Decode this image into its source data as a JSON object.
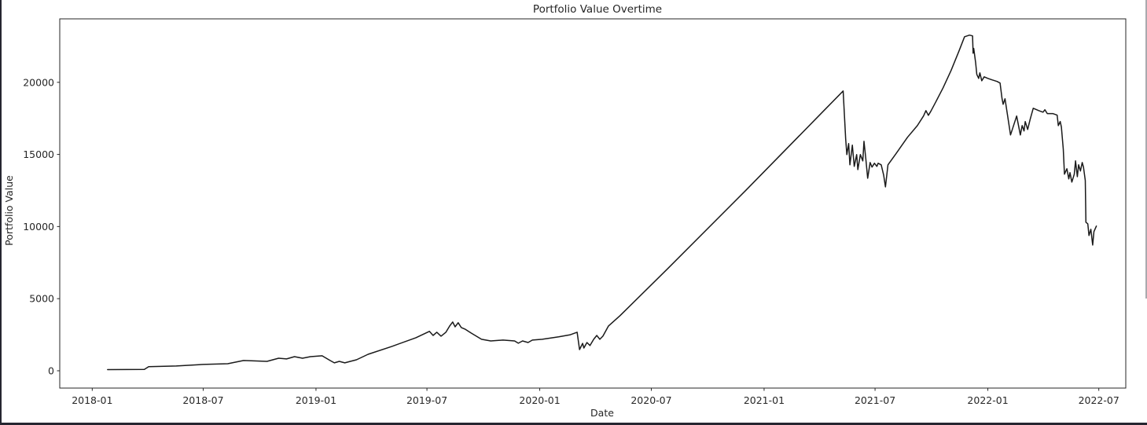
{
  "window": {
    "background": "#ffffff",
    "left_border_color": "#262630",
    "bottom_border_color": "#262630",
    "right_edge_color": "#aaaaae"
  },
  "chart_data": {
    "type": "line",
    "title": "Portfolio Value Overtime",
    "xlabel": "Date",
    "ylabel": "Portfolio Value",
    "grid": false,
    "legend_position": "none",
    "line_color": "#1a1a1a",
    "axis_color": "#262626",
    "x_tick_labels": [
      "2018-01",
      "2018-07",
      "2019-01",
      "2019-07",
      "2020-01",
      "2020-07",
      "2021-01",
      "2021-07",
      "2022-01",
      "2022-07"
    ],
    "y_tick_labels": [
      "0",
      "5000",
      "10000",
      "15000",
      "20000"
    ],
    "y_tick_values": [
      0,
      5000,
      10000,
      15000,
      20000
    ],
    "xlim": [
      "2017-11-09",
      "2022-08-14"
    ],
    "ylim": [
      -1200,
      24400
    ],
    "series": [
      {
        "name": "Portfolio Value",
        "points": [
          [
            "2018-01-26",
            80
          ],
          [
            "2018-03-27",
            90
          ],
          [
            "2018-04-03",
            280
          ],
          [
            "2018-05-18",
            330
          ],
          [
            "2018-07-01",
            440
          ],
          [
            "2018-08-10",
            490
          ],
          [
            "2018-09-05",
            710
          ],
          [
            "2018-10-13",
            650
          ],
          [
            "2018-11-01",
            870
          ],
          [
            "2018-11-14",
            820
          ],
          [
            "2018-11-27",
            980
          ],
          [
            "2018-12-10",
            870
          ],
          [
            "2018-12-23",
            980
          ],
          [
            "2019-01-11",
            1040
          ],
          [
            "2019-01-24",
            710
          ],
          [
            "2019-01-31",
            550
          ],
          [
            "2019-02-08",
            650
          ],
          [
            "2019-02-17",
            550
          ],
          [
            "2019-02-26",
            650
          ],
          [
            "2019-03-08",
            760
          ],
          [
            "2019-03-27",
            1140
          ],
          [
            "2019-05-05",
            1690
          ],
          [
            "2019-06-13",
            2290
          ],
          [
            "2019-07-05",
            2730
          ],
          [
            "2019-07-11",
            2450
          ],
          [
            "2019-07-17",
            2670
          ],
          [
            "2019-07-24",
            2400
          ],
          [
            "2019-08-01",
            2670
          ],
          [
            "2019-08-07",
            3100
          ],
          [
            "2019-08-12",
            3380
          ],
          [
            "2019-08-16",
            3050
          ],
          [
            "2019-08-21",
            3330
          ],
          [
            "2019-08-26",
            3000
          ],
          [
            "2019-09-01",
            2890
          ],
          [
            "2019-09-11",
            2620
          ],
          [
            "2019-09-28",
            2180
          ],
          [
            "2019-10-13",
            2070
          ],
          [
            "2019-11-02",
            2130
          ],
          [
            "2019-11-21",
            2070
          ],
          [
            "2019-11-27",
            1910
          ],
          [
            "2019-12-04",
            2070
          ],
          [
            "2019-12-13",
            1960
          ],
          [
            "2019-12-20",
            2130
          ],
          [
            "2020-01-05",
            2180
          ],
          [
            "2020-02-01",
            2350
          ],
          [
            "2020-02-20",
            2500
          ],
          [
            "2020-03-02",
            2670
          ],
          [
            "2020-03-06",
            1470
          ],
          [
            "2020-03-11",
            1900
          ],
          [
            "2020-03-13",
            1580
          ],
          [
            "2020-03-18",
            1960
          ],
          [
            "2020-03-23",
            1750
          ],
          [
            "2020-03-29",
            2180
          ],
          [
            "2020-04-03",
            2450
          ],
          [
            "2020-04-08",
            2180
          ],
          [
            "2020-04-13",
            2400
          ],
          [
            "2020-04-22",
            3100
          ],
          [
            "2020-05-11",
            3820
          ],
          [
            "2020-07-28",
            7090
          ],
          [
            "2020-12-03",
            12540
          ],
          [
            "2021-04-10",
            18100
          ],
          [
            "2021-05-10",
            19400
          ],
          [
            "2021-05-14",
            16080
          ],
          [
            "2021-05-16",
            14990
          ],
          [
            "2021-05-19",
            15750
          ],
          [
            "2021-05-21",
            14280
          ],
          [
            "2021-05-25",
            15640
          ],
          [
            "2021-05-28",
            14170
          ],
          [
            "2021-06-01",
            14990
          ],
          [
            "2021-06-03",
            13950
          ],
          [
            "2021-06-07",
            14990
          ],
          [
            "2021-06-11",
            14550
          ],
          [
            "2021-06-13",
            15910
          ],
          [
            "2021-06-16",
            14660
          ],
          [
            "2021-06-19",
            13350
          ],
          [
            "2021-06-23",
            14440
          ],
          [
            "2021-06-26",
            14120
          ],
          [
            "2021-06-30",
            14390
          ],
          [
            "2021-07-04",
            14170
          ],
          [
            "2021-07-06",
            14390
          ],
          [
            "2021-07-11",
            14280
          ],
          [
            "2021-07-15",
            13570
          ],
          [
            "2021-07-18",
            12750
          ],
          [
            "2021-07-22",
            14280
          ],
          [
            "2021-08-04",
            15040
          ],
          [
            "2021-08-23",
            16190
          ],
          [
            "2021-09-08",
            17000
          ],
          [
            "2021-09-18",
            17660
          ],
          [
            "2021-09-22",
            18040
          ],
          [
            "2021-09-26",
            17710
          ],
          [
            "2021-09-30",
            17990
          ],
          [
            "2021-10-08",
            18640
          ],
          [
            "2021-10-20",
            19620
          ],
          [
            "2021-11-02",
            20820
          ],
          [
            "2021-11-15",
            22180
          ],
          [
            "2021-11-24",
            23160
          ],
          [
            "2021-12-02",
            23270
          ],
          [
            "2021-12-07",
            23220
          ],
          [
            "2021-12-08",
            22020
          ],
          [
            "2021-12-09",
            22350
          ],
          [
            "2021-12-12",
            21370
          ],
          [
            "2021-12-14",
            20550
          ],
          [
            "2021-12-17",
            20270
          ],
          [
            "2021-12-19",
            20660
          ],
          [
            "2021-12-22",
            20110
          ],
          [
            "2021-12-26",
            20380
          ],
          [
            "2022-01-01",
            20270
          ],
          [
            "2022-01-08",
            20170
          ],
          [
            "2022-01-16",
            20060
          ],
          [
            "2022-01-21",
            19950
          ],
          [
            "2022-01-24",
            18910
          ],
          [
            "2022-01-26",
            18480
          ],
          [
            "2022-01-29",
            18860
          ],
          [
            "2022-02-07",
            16350
          ],
          [
            "2022-02-17",
            17660
          ],
          [
            "2022-02-23",
            16350
          ],
          [
            "2022-02-26",
            17000
          ],
          [
            "2022-03-01",
            16630
          ],
          [
            "2022-03-03",
            17280
          ],
          [
            "2022-03-07",
            16730
          ],
          [
            "2022-03-11",
            17440
          ],
          [
            "2022-03-16",
            18200
          ],
          [
            "2022-03-25",
            18040
          ],
          [
            "2022-04-01",
            17930
          ],
          [
            "2022-04-04",
            18100
          ],
          [
            "2022-04-08",
            17830
          ],
          [
            "2022-04-17",
            17830
          ],
          [
            "2022-04-24",
            17720
          ],
          [
            "2022-04-26",
            17000
          ],
          [
            "2022-04-29",
            17280
          ],
          [
            "2022-05-01",
            16900
          ],
          [
            "2022-05-04",
            15370
          ],
          [
            "2022-05-06",
            13630
          ],
          [
            "2022-05-10",
            14010
          ],
          [
            "2022-05-13",
            13300
          ],
          [
            "2022-05-15",
            13740
          ],
          [
            "2022-05-18",
            13080
          ],
          [
            "2022-05-22",
            13630
          ],
          [
            "2022-05-24",
            14550
          ],
          [
            "2022-05-27",
            13460
          ],
          [
            "2022-05-29",
            14280
          ],
          [
            "2022-06-01",
            13850
          ],
          [
            "2022-06-04",
            14440
          ],
          [
            "2022-06-06",
            14120
          ],
          [
            "2022-06-09",
            13190
          ],
          [
            "2022-06-10",
            10300
          ],
          [
            "2022-06-13",
            10190
          ],
          [
            "2022-06-15",
            9380
          ],
          [
            "2022-06-18",
            9810
          ],
          [
            "2022-06-21",
            8720
          ],
          [
            "2022-06-23",
            9650
          ],
          [
            "2022-06-27",
            10030
          ]
        ]
      }
    ]
  }
}
